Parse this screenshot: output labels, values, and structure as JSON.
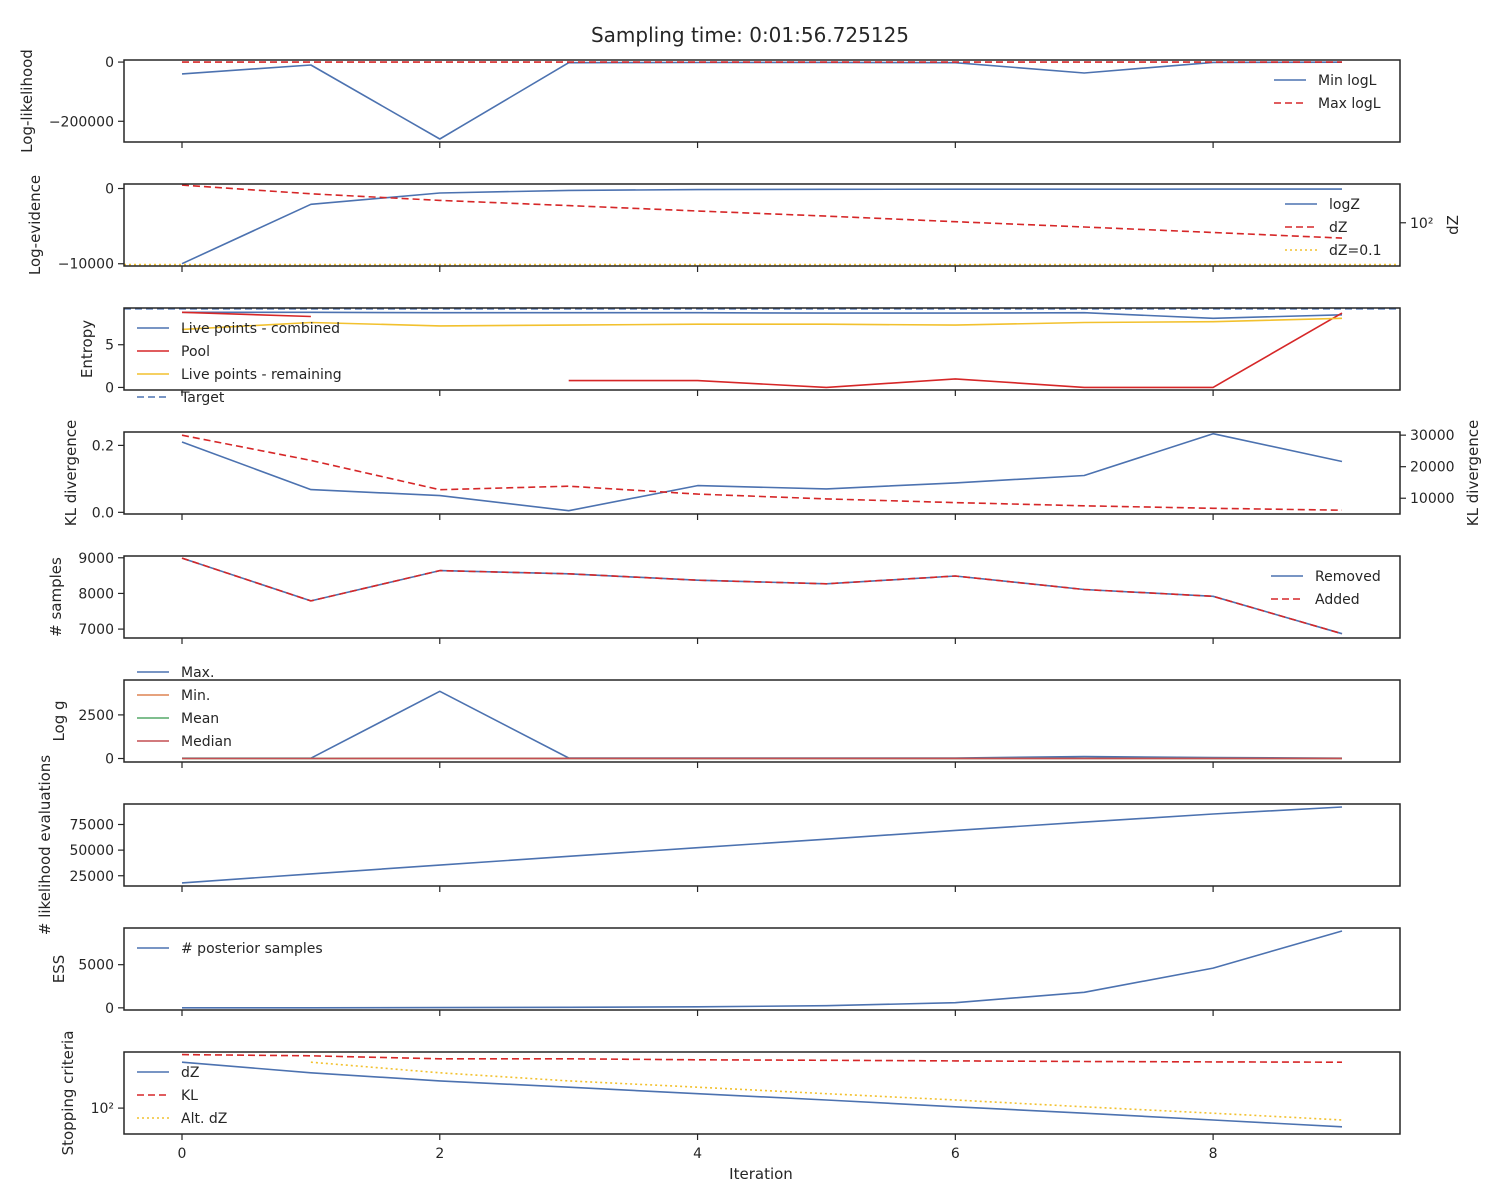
{
  "suptitle": "Sampling time: 0:01:56.725125",
  "xlabel": "Iteration",
  "xlim": [
    -0.45,
    9.45
  ],
  "xticks": [
    0,
    2,
    4,
    6,
    8
  ],
  "colors": {
    "blue": "#4c72b0",
    "red": "#d62728",
    "orange": "#dd8452",
    "green": "#55a868",
    "crimson": "#c44e52",
    "yellow": "#f2c12e",
    "axis": "#262626"
  },
  "chart_data": [
    {
      "type": "line",
      "ylabel": "Log-likelihood",
      "ylim": [
        -270000,
        7000
      ],
      "yticks": [
        0,
        -200000
      ],
      "ytick_labels": [
        "0",
        "−200000"
      ],
      "legend": "upper-right",
      "series": [
        {
          "name": "Min logL",
          "color": "blue",
          "dash": "solid",
          "x": [
            0,
            1,
            2,
            3,
            4,
            5,
            6,
            7,
            8,
            9
          ],
          "values": [
            -40000,
            -10000,
            -260000,
            -2000,
            -1500,
            -1000,
            -2000,
            -37000,
            -1000,
            -500
          ]
        },
        {
          "name": "Max logL",
          "color": "red",
          "dash": "dashed",
          "x": [
            0,
            1,
            2,
            3,
            4,
            5,
            6,
            7,
            8,
            9
          ],
          "values": [
            0,
            0,
            0,
            0,
            0,
            0,
            0,
            0,
            0,
            0
          ]
        }
      ]
    },
    {
      "type": "line",
      "ylabel": "Log-evidence",
      "ylim": [
        -10300,
        600
      ],
      "yticks": [
        0,
        -10000
      ],
      "ytick_labels": [
        "0",
        "−10000"
      ],
      "y2label": "dZ",
      "y2scale": "log",
      "y2lim": [
        0.08,
        60000
      ],
      "y2ticks": [
        100
      ],
      "y2tick_labels": [
        "10²"
      ],
      "legend": "upper-right",
      "series": [
        {
          "name": "logZ",
          "color": "blue",
          "dash": "solid",
          "axis": "left",
          "x": [
            0,
            1,
            2,
            3,
            4,
            5,
            6,
            7,
            8,
            9
          ],
          "values": [
            -10000,
            -2100,
            -600,
            -250,
            -150,
            -100,
            -90,
            -85,
            -80,
            -78
          ]
        },
        {
          "name": "dZ",
          "color": "red",
          "dash": "dashed",
          "axis": "right",
          "x": [
            0,
            1,
            2,
            3,
            4,
            5,
            6,
            7,
            8,
            9
          ],
          "values": [
            50000,
            12000,
            4000,
            1700,
            700,
            300,
            120,
            50,
            20,
            8
          ]
        },
        {
          "name": "dZ=0.1",
          "color": "yellow",
          "dash": "dotted",
          "axis": "right",
          "x": [
            -0.45,
            9.45
          ],
          "values": [
            0.1,
            0.1
          ]
        }
      ]
    },
    {
      "type": "line",
      "ylabel": "Entropy",
      "ylim": [
        -0.3,
        9.3
      ],
      "yticks": [
        0,
        5
      ],
      "ytick_labels": [
        "0",
        "5"
      ],
      "legend": "upper-left",
      "series": [
        {
          "name": "Live points - combined",
          "color": "blue",
          "dash": "solid",
          "x": [
            0,
            1,
            2,
            3,
            4,
            5,
            6,
            7,
            8,
            9
          ],
          "values": [
            8.8,
            8.8,
            8.75,
            8.75,
            8.75,
            8.7,
            8.7,
            8.75,
            8.1,
            8.5
          ]
        },
        {
          "name": "Pool",
          "color": "red",
          "dash": "solid",
          "segments": [
            {
              "x": [
                0,
                1
              ],
              "values": [
                8.8,
                8.3
              ]
            },
            {
              "x": [
                3,
                4,
                5,
                6,
                7,
                8,
                9
              ],
              "values": [
                0.8,
                0.8,
                0.0,
                1.0,
                0.0,
                0.0,
                8.7
              ]
            }
          ]
        },
        {
          "name": "Live points - remaining",
          "color": "yellow",
          "dash": "solid",
          "x": [
            0,
            1,
            2,
            3,
            4,
            5,
            6,
            7,
            8,
            9
          ],
          "values": [
            6.8,
            7.6,
            7.2,
            7.3,
            7.4,
            7.4,
            7.3,
            7.6,
            7.7,
            8.1
          ]
        },
        {
          "name": "Target",
          "color": "blue",
          "dash": "dashed",
          "x": [
            -0.45,
            9.45
          ],
          "values": [
            9.21,
            9.21
          ]
        }
      ]
    },
    {
      "type": "line",
      "ylabel": "KL divergence",
      "ylim": [
        -0.005,
        0.24
      ],
      "yticks": [
        0.0,
        0.2
      ],
      "ytick_labels": [
        "0.0",
        "0.2"
      ],
      "y2label": "KL divergence",
      "y2lim": [
        5000,
        31000
      ],
      "y2ticks": [
        10000,
        20000,
        30000
      ],
      "y2tick_labels": [
        "10000",
        "20000",
        "30000"
      ],
      "series": [
        {
          "color": "blue",
          "dash": "solid",
          "axis": "left",
          "x": [
            0,
            1,
            2,
            3,
            4,
            5,
            6,
            7,
            8,
            9
          ],
          "values": [
            0.21,
            0.068,
            0.05,
            0.005,
            0.08,
            0.07,
            0.088,
            0.11,
            0.235,
            0.152
          ]
        },
        {
          "color": "red",
          "dash": "dashed",
          "axis": "right",
          "x": [
            0,
            1,
            2,
            3,
            4,
            5,
            6,
            7,
            8,
            9
          ],
          "values": [
            30000,
            22000,
            12700,
            13800,
            11300,
            9800,
            8600,
            7600,
            6800,
            6200
          ]
        }
      ]
    },
    {
      "type": "line",
      "ylabel": "# samples",
      "ylim": [
        6750,
        9050
      ],
      "yticks": [
        7000,
        8000,
        9000
      ],
      "ytick_labels": [
        "7000",
        "8000",
        "9000"
      ],
      "legend": "upper-right",
      "series": [
        {
          "name": "Removed",
          "color": "blue",
          "dash": "solid",
          "x": [
            0,
            1,
            2,
            3,
            4,
            5,
            6,
            7,
            8,
            9
          ],
          "values": [
            8990,
            7790,
            8640,
            8550,
            8370,
            8270,
            8490,
            8110,
            7920,
            6870
          ]
        },
        {
          "name": "Added",
          "color": "red",
          "dash": "dashed",
          "x": [
            0,
            1,
            2,
            3,
            4,
            5,
            6,
            7,
            8,
            9
          ],
          "values": [
            8990,
            7790,
            8640,
            8550,
            8370,
            8270,
            8490,
            8110,
            7920,
            6870
          ]
        }
      ]
    },
    {
      "type": "line",
      "ylabel": "Log g",
      "ylim": [
        -200,
        4500
      ],
      "yticks": [
        0,
        2500
      ],
      "ytick_labels": [
        "0",
        "2500"
      ],
      "legend": "upper-left",
      "series": [
        {
          "name": "Max.",
          "color": "blue",
          "dash": "solid",
          "x": [
            0,
            1,
            2,
            3,
            4,
            5,
            6,
            7,
            8,
            9
          ],
          "values": [
            20,
            20,
            3850,
            30,
            30,
            25,
            30,
            110,
            60,
            20
          ]
        },
        {
          "name": "Min.",
          "color": "orange",
          "dash": "solid",
          "x": [
            0,
            1,
            2,
            3,
            4,
            5,
            6,
            7,
            8,
            9
          ],
          "values": [
            0,
            0,
            0,
            0,
            0,
            0,
            0,
            0,
            0,
            0
          ]
        },
        {
          "name": "Mean",
          "color": "green",
          "dash": "solid",
          "x": [
            0,
            1,
            2,
            3,
            4,
            5,
            6,
            7,
            8,
            9
          ],
          "values": [
            5,
            5,
            10,
            8,
            8,
            8,
            8,
            10,
            8,
            6
          ]
        },
        {
          "name": "Median",
          "color": "crimson",
          "dash": "solid",
          "x": [
            0,
            1,
            2,
            3,
            4,
            5,
            6,
            7,
            8,
            9
          ],
          "values": [
            3,
            3,
            5,
            5,
            5,
            5,
            5,
            6,
            5,
            4
          ]
        }
      ]
    },
    {
      "type": "line",
      "ylabel": "# likelihood evaluations",
      "ylim": [
        15000,
        95000
      ],
      "yticks": [
        25000,
        50000,
        75000
      ],
      "ytick_labels": [
        "25000",
        "50000",
        "75000"
      ],
      "series": [
        {
          "color": "blue",
          "dash": "solid",
          "x": [
            0,
            1,
            2,
            3,
            4,
            5,
            6,
            7,
            8,
            9
          ],
          "values": [
            18000,
            26800,
            35400,
            44000,
            52400,
            60700,
            69200,
            77300,
            85200,
            92100
          ]
        }
      ]
    },
    {
      "type": "line",
      "ylabel": "ESS",
      "ylim": [
        -250,
        9250
      ],
      "yticks": [
        0,
        5000
      ],
      "ytick_labels": [
        "0",
        "5000"
      ],
      "legend": "upper-left",
      "series": [
        {
          "name": "# posterior samples",
          "color": "blue",
          "dash": "solid",
          "x": [
            0,
            1,
            2,
            3,
            4,
            5,
            6,
            7,
            8,
            9
          ],
          "values": [
            0,
            10,
            30,
            60,
            120,
            250,
            600,
            1800,
            4600,
            8900
          ]
        }
      ]
    },
    {
      "type": "line",
      "ylabel": "Stopping criteria",
      "yscale": "log",
      "ylim": [
        3,
        200000
      ],
      "yticks": [
        100
      ],
      "ytick_labels": [
        "10²"
      ],
      "legend": "upper-left",
      "series": [
        {
          "name": "dZ",
          "color": "blue",
          "dash": "solid",
          "x": [
            0,
            1,
            2,
            3,
            4,
            5,
            6,
            7,
            8,
            9
          ],
          "values": [
            50000,
            12000,
            4000,
            1700,
            700,
            300,
            120,
            50,
            20,
            8
          ]
        },
        {
          "name": "KL",
          "color": "red",
          "dash": "dashed",
          "x": [
            0,
            1,
            2,
            3,
            4,
            5,
            6,
            7,
            8,
            9
          ],
          "values": [
            140000,
            120000,
            80000,
            80000,
            70000,
            65000,
            60000,
            55000,
            52000,
            50000
          ]
        },
        {
          "name": "Alt. dZ",
          "color": "yellow",
          "dash": "dotted",
          "x": [
            1,
            2,
            3,
            4,
            5,
            6,
            7,
            8,
            9
          ],
          "values": [
            50000,
            12000,
            4000,
            1700,
            700,
            300,
            120,
            50,
            20
          ]
        }
      ]
    }
  ]
}
